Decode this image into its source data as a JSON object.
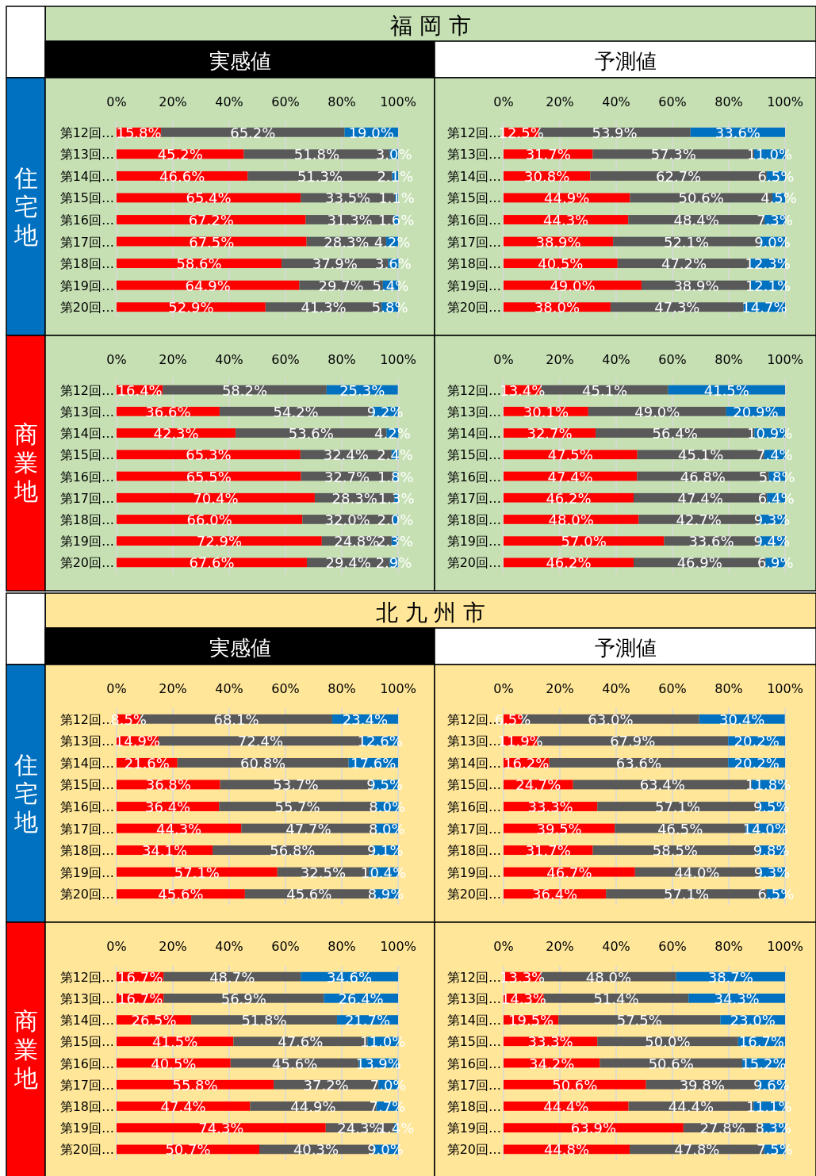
{
  "chart_data": [
    {
      "type": "bar",
      "orientation": "horizontal",
      "stacked": true,
      "title": "福 岡 市",
      "subtitle": "実感値",
      "ylabel": "住宅地",
      "categories": [
        "第12回…",
        "第13回…",
        "第14回…",
        "第15回…",
        "第16回…",
        "第17回…",
        "第18回…",
        "第19回…",
        "第20回…"
      ],
      "xlim": [
        0,
        100
      ],
      "xticks": [
        {
          "value": 0,
          "label": "0%"
        },
        {
          "value": 20,
          "label": "20%"
        },
        {
          "value": 40,
          "label": "40%"
        },
        {
          "value": 60,
          "label": "60%"
        },
        {
          "value": 80,
          "label": "80%"
        },
        {
          "value": 100,
          "label": "100%"
        }
      ],
      "grid": "x",
      "series": [
        {
          "color": "#ff0000",
          "values": [
            15.8,
            45.2,
            46.6,
            65.4,
            67.2,
            67.5,
            58.6,
            64.9,
            52.9
          ],
          "value_labels": [
            "15.8%",
            "45.2%",
            "46.6%",
            "65.4%",
            "67.2%",
            "67.5%",
            "58.6%",
            "64.9%",
            "52.9%"
          ]
        },
        {
          "color": "#595959",
          "values": [
            65.2,
            51.8,
            51.3,
            33.5,
            31.3,
            28.3,
            37.9,
            29.7,
            41.3
          ],
          "value_labels": [
            "65.2%",
            "51.8%",
            "51.3%",
            "33.5%",
            "31.3%",
            "28.3%",
            "37.9%",
            "29.7%",
            "41.3%"
          ]
        },
        {
          "color": "#0070c0",
          "values": [
            19.0,
            3.0,
            2.1,
            1.1,
            1.6,
            4.2,
            3.6,
            5.4,
            5.8
          ],
          "value_labels": [
            "19.0%",
            "3.0%",
            "2.1%",
            "1.1%",
            "1.6%",
            "4.2%",
            "3.6%",
            "5.4%",
            "5.8%"
          ]
        }
      ]
    },
    {
      "type": "bar",
      "orientation": "horizontal",
      "stacked": true,
      "subtitle": "予測値",
      "categories": [
        "第12回…",
        "第13回…",
        "第14回…",
        "第15回…",
        "第16回…",
        "第17回…",
        "第18回…",
        "第19回…",
        "第20回…"
      ],
      "xlim": [
        0,
        100
      ],
      "xticks": [
        {
          "value": 0,
          "label": "0%"
        },
        {
          "value": 20,
          "label": "20%"
        },
        {
          "value": 40,
          "label": "40%"
        },
        {
          "value": 60,
          "label": "60%"
        },
        {
          "value": 80,
          "label": "80%"
        },
        {
          "value": 100,
          "label": "100%"
        }
      ],
      "grid": "x",
      "series": [
        {
          "color": "#ff0000",
          "values": [
            12.5,
            31.7,
            30.8,
            44.9,
            44.3,
            38.9,
            40.5,
            49.0,
            38.0
          ],
          "value_labels": [
            "12.5%",
            "31.7%",
            "30.8%",
            "44.9%",
            "44.3%",
            "38.9%",
            "40.5%",
            "49.0%",
            "38.0%"
          ]
        },
        {
          "color": "#595959",
          "values": [
            53.9,
            57.3,
            62.7,
            50.6,
            48.4,
            52.1,
            47.2,
            38.9,
            47.3
          ],
          "value_labels": [
            "53.9%",
            "57.3%",
            "62.7%",
            "50.6%",
            "48.4%",
            "52.1%",
            "47.2%",
            "38.9%",
            "47.3%"
          ]
        },
        {
          "color": "#0070c0",
          "values": [
            33.6,
            11.0,
            6.5,
            4.5,
            7.3,
            9.0,
            12.3,
            12.1,
            14.7
          ],
          "value_labels": [
            "33.6%",
            "11.0%",
            "6.5%",
            "4.5%",
            "7.3%",
            "9.0%",
            "12.3%",
            "12.1%",
            "14.7%"
          ]
        }
      ]
    },
    {
      "type": "bar",
      "orientation": "horizontal",
      "stacked": true,
      "ylabel": "商業地",
      "categories": [
        "第12回…",
        "第13回…",
        "第14回…",
        "第15回…",
        "第16回…",
        "第17回…",
        "第18回…",
        "第19回…",
        "第20回…"
      ],
      "xlim": [
        0,
        100
      ],
      "xticks": [
        {
          "value": 0,
          "label": "0%"
        },
        {
          "value": 20,
          "label": "20%"
        },
        {
          "value": 40,
          "label": "40%"
        },
        {
          "value": 60,
          "label": "60%"
        },
        {
          "value": 80,
          "label": "80%"
        },
        {
          "value": 100,
          "label": "100%"
        }
      ],
      "grid": "x",
      "series": [
        {
          "color": "#ff0000",
          "values": [
            16.4,
            36.6,
            42.3,
            65.3,
            65.5,
            70.4,
            66.0,
            72.9,
            67.6
          ],
          "value_labels": [
            "16.4%",
            "36.6%",
            "42.3%",
            "65.3%",
            "65.5%",
            "70.4%",
            "66.0%",
            "72.9%",
            "67.6%"
          ]
        },
        {
          "color": "#595959",
          "values": [
            58.2,
            54.2,
            53.6,
            32.4,
            32.7,
            28.3,
            32.0,
            24.8,
            29.4
          ],
          "value_labels": [
            "58.2%",
            "54.2%",
            "53.6%",
            "32.4%",
            "32.7%",
            "28.3%",
            "32.0%",
            "24.8%",
            "29.4%"
          ]
        },
        {
          "color": "#0070c0",
          "values": [
            25.3,
            9.2,
            4.2,
            2.4,
            1.8,
            1.3,
            2.0,
            2.3,
            2.9
          ],
          "value_labels": [
            "25.3%",
            "9.2%",
            "4.2%",
            "2.4%",
            "1.8%",
            "1.3%",
            "2.0%",
            "2.3%",
            "2.9%"
          ]
        }
      ]
    },
    {
      "type": "bar",
      "orientation": "horizontal",
      "stacked": true,
      "categories": [
        "第12回…",
        "第13回…",
        "第14回…",
        "第15回…",
        "第16回…",
        "第17回…",
        "第18回…",
        "第19回…",
        "第20回…"
      ],
      "xlim": [
        0,
        100
      ],
      "xticks": [
        {
          "value": 0,
          "label": "0%"
        },
        {
          "value": 20,
          "label": "20%"
        },
        {
          "value": 40,
          "label": "40%"
        },
        {
          "value": 60,
          "label": "60%"
        },
        {
          "value": 80,
          "label": "80%"
        },
        {
          "value": 100,
          "label": "100%"
        }
      ],
      "grid": "x",
      "series": [
        {
          "color": "#ff0000",
          "values": [
            13.4,
            30.1,
            32.7,
            47.5,
            47.4,
            46.2,
            48.0,
            57.0,
            46.2
          ],
          "value_labels": [
            "13.4%",
            "30.1%",
            "32.7%",
            "47.5%",
            "47.4%",
            "46.2%",
            "48.0%",
            "57.0%",
            "46.2%"
          ]
        },
        {
          "color": "#595959",
          "values": [
            45.1,
            49.0,
            56.4,
            45.1,
            46.8,
            47.4,
            42.7,
            33.6,
            46.9
          ],
          "value_labels": [
            "45.1%",
            "49.0%",
            "56.4%",
            "45.1%",
            "46.8%",
            "47.4%",
            "42.7%",
            "33.6%",
            "46.9%"
          ]
        },
        {
          "color": "#0070c0",
          "values": [
            41.5,
            20.9,
            10.9,
            7.4,
            5.8,
            6.4,
            9.3,
            9.4,
            6.9
          ],
          "value_labels": [
            "41.5%",
            "20.9%",
            "10.9%",
            "7.4%",
            "5.8%",
            "6.4%",
            "9.3%",
            "9.4%",
            "6.9%"
          ]
        }
      ]
    },
    {
      "type": "bar",
      "orientation": "horizontal",
      "stacked": true,
      "title": "北 九 州 市",
      "subtitle": "実感値",
      "ylabel": "住宅地",
      "categories": [
        "第12回…",
        "第13回…",
        "第14回…",
        "第15回…",
        "第16回…",
        "第17回…",
        "第18回…",
        "第19回…",
        "第20回…"
      ],
      "xlim": [
        0,
        100
      ],
      "xticks": [
        {
          "value": 0,
          "label": "0%"
        },
        {
          "value": 20,
          "label": "20%"
        },
        {
          "value": 40,
          "label": "40%"
        },
        {
          "value": 60,
          "label": "60%"
        },
        {
          "value": 80,
          "label": "80%"
        },
        {
          "value": 100,
          "label": "100%"
        }
      ],
      "grid": "x",
      "series": [
        {
          "color": "#ff0000",
          "values": [
            8.5,
            14.9,
            21.6,
            36.8,
            36.4,
            44.3,
            34.1,
            57.1,
            45.6
          ],
          "value_labels": [
            "8.5%",
            "14.9%",
            "21.6%",
            "36.8%",
            "36.4%",
            "44.3%",
            "34.1%",
            "57.1%",
            "45.6%"
          ]
        },
        {
          "color": "#595959",
          "values": [
            68.1,
            72.4,
            60.8,
            53.7,
            55.7,
            47.7,
            56.8,
            32.5,
            45.6
          ],
          "value_labels": [
            "68.1%",
            "72.4%",
            "60.8%",
            "53.7%",
            "55.7%",
            "47.7%",
            "56.8%",
            "32.5%",
            "45.6%"
          ]
        },
        {
          "color": "#0070c0",
          "values": [
            23.4,
            12.6,
            17.6,
            9.5,
            8.0,
            8.0,
            9.1,
            10.4,
            8.9
          ],
          "value_labels": [
            "23.4%",
            "12.6%",
            "17.6%",
            "9.5%",
            "8.0%",
            "8.0%",
            "9.1%",
            "10.4%",
            "8.9%"
          ]
        }
      ]
    },
    {
      "type": "bar",
      "orientation": "horizontal",
      "stacked": true,
      "subtitle": "予測値",
      "categories": [
        "第12回…",
        "第13回…",
        "第14回…",
        "第15回…",
        "第16回…",
        "第17回…",
        "第18回…",
        "第19回…",
        "第20回…"
      ],
      "xlim": [
        0,
        100
      ],
      "xticks": [
        {
          "value": 0,
          "label": "0%"
        },
        {
          "value": 20,
          "label": "20%"
        },
        {
          "value": 40,
          "label": "40%"
        },
        {
          "value": 60,
          "label": "60%"
        },
        {
          "value": 80,
          "label": "80%"
        },
        {
          "value": 100,
          "label": "100%"
        }
      ],
      "grid": "x",
      "series": [
        {
          "color": "#ff0000",
          "values": [
            6.5,
            11.9,
            16.2,
            24.7,
            33.3,
            39.5,
            31.7,
            46.7,
            36.4
          ],
          "value_labels": [
            "6.5%",
            "11.9%",
            "16.2%",
            "24.7%",
            "33.3%",
            "39.5%",
            "31.7%",
            "46.7%",
            "36.4%"
          ]
        },
        {
          "color": "#595959",
          "values": [
            63.0,
            67.9,
            63.6,
            63.4,
            57.1,
            46.5,
            58.5,
            44.0,
            57.1
          ],
          "value_labels": [
            "63.0%",
            "67.9%",
            "63.6%",
            "63.4%",
            "57.1%",
            "46.5%",
            "58.5%",
            "44.0%",
            "57.1%"
          ]
        },
        {
          "color": "#0070c0",
          "values": [
            30.4,
            20.2,
            20.2,
            11.8,
            9.5,
            14.0,
            9.8,
            9.3,
            6.5
          ],
          "value_labels": [
            "30.4%",
            "20.2%",
            "20.2%",
            "11.8%",
            "9.5%",
            "14.0%",
            "9.8%",
            "9.3%",
            "6.5%"
          ]
        }
      ]
    },
    {
      "type": "bar",
      "orientation": "horizontal",
      "stacked": true,
      "ylabel": "商業地",
      "categories": [
        "第12回…",
        "第13回…",
        "第14回…",
        "第15回…",
        "第16回…",
        "第17回…",
        "第18回…",
        "第19回…",
        "第20回…"
      ],
      "xlim": [
        0,
        100
      ],
      "xticks": [
        {
          "value": 0,
          "label": "0%"
        },
        {
          "value": 20,
          "label": "20%"
        },
        {
          "value": 40,
          "label": "40%"
        },
        {
          "value": 60,
          "label": "60%"
        },
        {
          "value": 80,
          "label": "80%"
        },
        {
          "value": 100,
          "label": "100%"
        }
      ],
      "grid": "x",
      "series": [
        {
          "color": "#ff0000",
          "values": [
            16.7,
            16.7,
            26.5,
            41.5,
            40.5,
            55.8,
            47.4,
            74.3,
            50.7
          ],
          "value_labels": [
            "16.7%",
            "16.7%",
            "26.5%",
            "41.5%",
            "40.5%",
            "55.8%",
            "47.4%",
            "74.3%",
            "50.7%"
          ]
        },
        {
          "color": "#595959",
          "values": [
            48.7,
            56.9,
            51.8,
            47.6,
            45.6,
            37.2,
            44.9,
            24.3,
            40.3
          ],
          "value_labels": [
            "48.7%",
            "56.9%",
            "51.8%",
            "47.6%",
            "45.6%",
            "37.2%",
            "44.9%",
            "24.3%",
            "40.3%"
          ]
        },
        {
          "color": "#0070c0",
          "values": [
            34.6,
            26.4,
            21.7,
            11.0,
            13.9,
            7.0,
            7.7,
            1.4,
            9.0
          ],
          "value_labels": [
            "34.6%",
            "26.4%",
            "21.7%",
            "11.0%",
            "13.9%",
            "7.0%",
            "7.7%",
            "1.4%",
            "9.0%"
          ]
        }
      ]
    },
    {
      "type": "bar",
      "orientation": "horizontal",
      "stacked": true,
      "categories": [
        "第12回…",
        "第13回…",
        "第14回…",
        "第15回…",
        "第16回…",
        "第17回…",
        "第18回…",
        "第19回…",
        "第20回…"
      ],
      "xlim": [
        0,
        100
      ],
      "xticks": [
        {
          "value": 0,
          "label": "0%"
        },
        {
          "value": 20,
          "label": "20%"
        },
        {
          "value": 40,
          "label": "40%"
        },
        {
          "value": 60,
          "label": "60%"
        },
        {
          "value": 80,
          "label": "80%"
        },
        {
          "value": 100,
          "label": "100%"
        }
      ],
      "grid": "x",
      "series": [
        {
          "color": "#ff0000",
          "values": [
            13.3,
            14.3,
            19.5,
            33.3,
            34.2,
            50.6,
            44.4,
            63.9,
            44.8
          ],
          "value_labels": [
            "13.3%",
            "14.3%",
            "19.5%",
            "33.3%",
            "34.2%",
            "50.6%",
            "44.4%",
            "63.9%",
            "44.8%"
          ]
        },
        {
          "color": "#595959",
          "values": [
            48.0,
            51.4,
            57.5,
            50.0,
            50.6,
            39.8,
            44.4,
            27.8,
            47.8
          ],
          "value_labels": [
            "48.0%",
            "51.4%",
            "57.5%",
            "50.0%",
            "50.6%",
            "39.8%",
            "44.4%",
            "27.8%",
            "47.8%"
          ]
        },
        {
          "color": "#0070c0",
          "values": [
            38.7,
            34.3,
            23.0,
            16.7,
            15.2,
            9.6,
            11.1,
            8.3,
            7.5
          ],
          "value_labels": [
            "38.7%",
            "34.3%",
            "23.0%",
            "16.7%",
            "15.2%",
            "9.6%",
            "11.1%",
            "8.3%",
            "7.5%"
          ]
        }
      ]
    }
  ]
}
